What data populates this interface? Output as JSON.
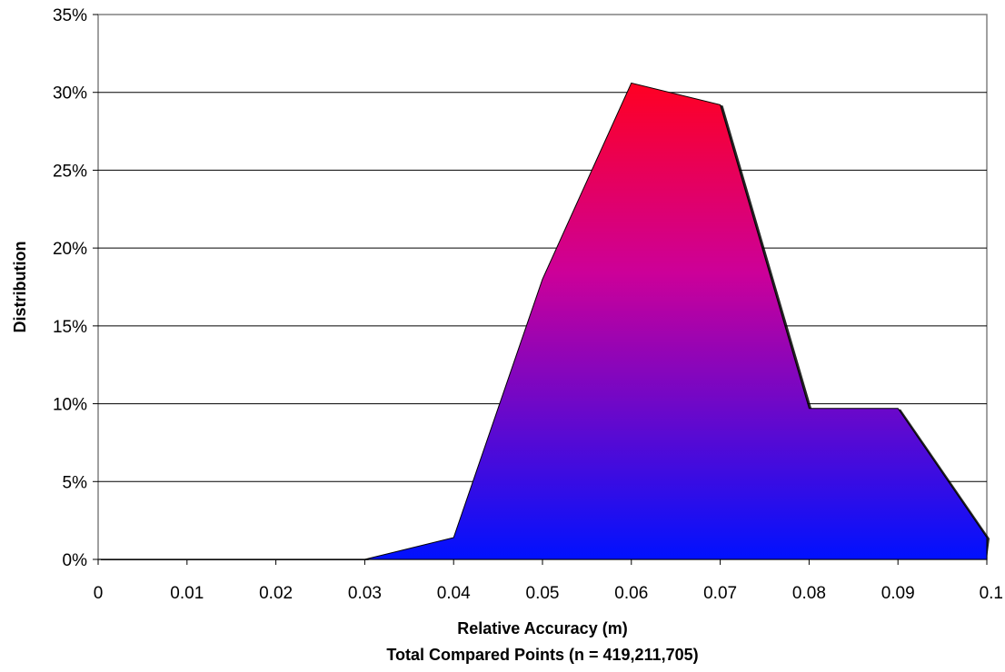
{
  "chart_data": {
    "type": "area",
    "title": "",
    "xlabel": "Relative Accuracy (m)",
    "xlabel_sub": "Total Compared Points (n = 419,211,705)",
    "ylabel": "Distribution",
    "x": [
      0,
      0.01,
      0.02,
      0.03,
      0.04,
      0.05,
      0.06,
      0.07,
      0.08,
      0.09,
      0.1
    ],
    "values": [
      0,
      0,
      0,
      0,
      1.4,
      18,
      30.6,
      29.2,
      9.7,
      9.7,
      1.4
    ],
    "xlim": [
      0,
      0.1
    ],
    "ylim": [
      0,
      35
    ],
    "x_ticks": [
      "0",
      "0.01",
      "0.02",
      "0.03",
      "0.04",
      "0.05",
      "0.06",
      "0.07",
      "0.08",
      "0.09",
      "0.1"
    ],
    "y_ticks": [
      "0%",
      "5%",
      "10%",
      "15%",
      "20%",
      "25%",
      "30%",
      "35%"
    ],
    "y_tick_values": [
      0,
      5,
      10,
      15,
      20,
      25,
      30,
      35
    ],
    "grid": "horizontal",
    "legend": "none",
    "colors": {
      "fill_top": "#ff0022",
      "fill_mid": "#cc0099",
      "fill_bottom": "#0011ff",
      "outline": "#000000",
      "grid": "#000000",
      "frame": "#808080"
    }
  }
}
